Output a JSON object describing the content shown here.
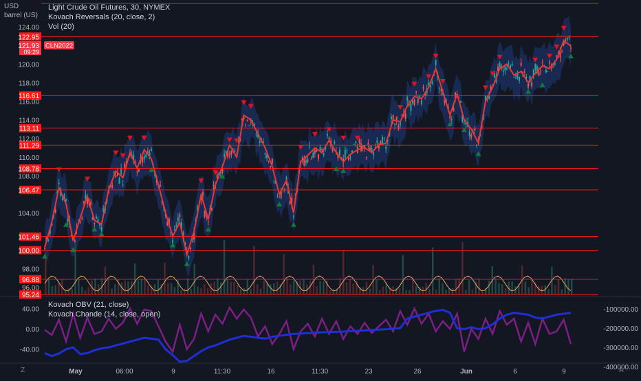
{
  "header": {
    "currency": "USD",
    "unit": "barrel (US)",
    "symbol_line": "Light Crude Oil Futures, 30, NYMEX",
    "indicator_1": "Kovach Reversals (20, close, 2)",
    "indicator_2": "Vol (20)"
  },
  "oscillator_pane": {
    "indicator_1": "Kovach OBV (21, close)",
    "indicator_2": "Kovach Chande (14, close, open)"
  },
  "corner_buttons": {
    "left": "Z",
    "right": "A"
  },
  "price_badge": {
    "price": "121.93",
    "timer": "09:29",
    "ticker": "CLN2022"
  },
  "colors": {
    "background": "#131722",
    "level_line": "#ff1a1a",
    "price_badge": "#f23645",
    "ma_line": "#e53935",
    "band_fill": "#1e3a78",
    "buy_marker": "#0e7c36",
    "sell_marker": "#e0141e",
    "obv_line": "#1f2fd6",
    "chande_line": "#7b1f85",
    "volume_avg": "#f2a463"
  },
  "chart_data": [
    {
      "type": "line",
      "title": "Light Crude Oil Futures, 30, NYMEX",
      "ylim": [
        95.24,
        125.0
      ],
      "y_ticks": [
        "96.00",
        "98.00",
        "100.00",
        "102.00",
        "104.00",
        "106.00",
        "108.00",
        "110.00",
        "112.00",
        "114.00",
        "116.00",
        "118.00",
        "120.00",
        "122.00",
        "124.00"
      ],
      "x_ticks": [
        "May",
        "06:00",
        "9",
        "11:30",
        "16",
        "11:30",
        "23",
        "26",
        "Jun",
        "6",
        "9"
      ],
      "horizontal_levels": [
        "122.95",
        "116.61",
        "113.11",
        "111.29",
        "108.78",
        "106.47",
        "101.46",
        "100.00",
        "96.88",
        "95.24"
      ],
      "price_path": [
        {
          "t": 0,
          "v": 100.3
        },
        {
          "t": 1,
          "v": 103.0
        },
        {
          "t": 2,
          "v": 106.7
        },
        {
          "t": 3,
          "v": 105.0
        },
        {
          "t": 4,
          "v": 101.0
        },
        {
          "t": 5,
          "v": 103.5
        },
        {
          "t": 6,
          "v": 105.8
        },
        {
          "t": 7,
          "v": 103.2
        },
        {
          "t": 8,
          "v": 102.8
        },
        {
          "t": 9,
          "v": 106.5
        },
        {
          "t": 10,
          "v": 108.5
        },
        {
          "t": 11,
          "v": 107.8
        },
        {
          "t": 12,
          "v": 110.5
        },
        {
          "t": 13,
          "v": 108.8
        },
        {
          "t": 14,
          "v": 110.8
        },
        {
          "t": 15,
          "v": 109.8
        },
        {
          "t": 16,
          "v": 107.0
        },
        {
          "t": 17,
          "v": 104.0
        },
        {
          "t": 18,
          "v": 101.5
        },
        {
          "t": 19,
          "v": 103.0
        },
        {
          "t": 20,
          "v": 99.5
        },
        {
          "t": 21,
          "v": 102.0
        },
        {
          "t": 22,
          "v": 106.0
        },
        {
          "t": 23,
          "v": 103.3
        },
        {
          "t": 24,
          "v": 107.0
        },
        {
          "t": 25,
          "v": 109.0
        },
        {
          "t": 26,
          "v": 111.3
        },
        {
          "t": 27,
          "v": 110.0
        },
        {
          "t": 28,
          "v": 114.5
        },
        {
          "t": 29,
          "v": 114.0
        },
        {
          "t": 30,
          "v": 112.5
        },
        {
          "t": 31,
          "v": 111.0
        },
        {
          "t": 32,
          "v": 109.0
        },
        {
          "t": 33,
          "v": 106.0
        },
        {
          "t": 34,
          "v": 107.5
        },
        {
          "t": 35,
          "v": 104.0
        },
        {
          "t": 36,
          "v": 109.5
        },
        {
          "t": 37,
          "v": 110.2
        },
        {
          "t": 38,
          "v": 111.0
        },
        {
          "t": 39,
          "v": 110.5
        },
        {
          "t": 40,
          "v": 111.8
        },
        {
          "t": 41,
          "v": 110.5
        },
        {
          "t": 42,
          "v": 109.5
        },
        {
          "t": 43,
          "v": 110.3
        },
        {
          "t": 44,
          "v": 110.8
        },
        {
          "t": 45,
          "v": 111.0
        },
        {
          "t": 46,
          "v": 110.5
        },
        {
          "t": 47,
          "v": 111.3
        },
        {
          "t": 48,
          "v": 111.5
        },
        {
          "t": 49,
          "v": 114.0
        },
        {
          "t": 50,
          "v": 113.8
        },
        {
          "t": 51,
          "v": 115.5
        },
        {
          "t": 52,
          "v": 116.5
        },
        {
          "t": 53,
          "v": 116.3
        },
        {
          "t": 54,
          "v": 117.5
        },
        {
          "t": 55,
          "v": 119.5
        },
        {
          "t": 56,
          "v": 117.0
        },
        {
          "t": 57,
          "v": 114.5
        },
        {
          "t": 58,
          "v": 116.8
        },
        {
          "t": 59,
          "v": 114.0
        },
        {
          "t": 60,
          "v": 113.0
        },
        {
          "t": 61,
          "v": 111.5
        },
        {
          "t": 62,
          "v": 116.0
        },
        {
          "t": 63,
          "v": 117.5
        },
        {
          "t": 64,
          "v": 119.5
        },
        {
          "t": 65,
          "v": 120.0
        },
        {
          "t": 66,
          "v": 118.8
        },
        {
          "t": 67,
          "v": 119.2
        },
        {
          "t": 68,
          "v": 118.0
        },
        {
          "t": 69,
          "v": 119.0
        },
        {
          "t": 70,
          "v": 119.8
        },
        {
          "t": 71,
          "v": 119.5
        },
        {
          "t": 72,
          "v": 120.5
        },
        {
          "t": 73,
          "v": 122.5
        },
        {
          "t": 74,
          "v": 121.93
        }
      ],
      "sell_markers": [
        {
          "t": 2,
          "v": 108.6
        },
        {
          "t": 6,
          "v": 107.6
        },
        {
          "t": 10,
          "v": 110.4
        },
        {
          "t": 11,
          "v": 110.1
        },
        {
          "t": 12,
          "v": 112.0
        },
        {
          "t": 14,
          "v": 112.0
        },
        {
          "t": 22,
          "v": 107.4
        },
        {
          "t": 24,
          "v": 108.3
        },
        {
          "t": 26,
          "v": 111.8
        },
        {
          "t": 27,
          "v": 111.7
        },
        {
          "t": 28,
          "v": 115.8
        },
        {
          "t": 29,
          "v": 115.4
        },
        {
          "t": 36,
          "v": 111.0
        },
        {
          "t": 38,
          "v": 112.4
        },
        {
          "t": 40,
          "v": 112.9
        },
        {
          "t": 42,
          "v": 112.0
        },
        {
          "t": 44,
          "v": 112.0
        },
        {
          "t": 50,
          "v": 115.3
        },
        {
          "t": 52,
          "v": 117.8
        },
        {
          "t": 54,
          "v": 118.6
        },
        {
          "t": 55,
          "v": 120.8
        },
        {
          "t": 56,
          "v": 118.1
        },
        {
          "t": 62,
          "v": 117.4
        },
        {
          "t": 63,
          "v": 118.9
        },
        {
          "t": 64,
          "v": 120.7
        },
        {
          "t": 69,
          "v": 120.4
        },
        {
          "t": 71,
          "v": 120.8
        },
        {
          "t": 72,
          "v": 121.8
        },
        {
          "t": 73,
          "v": 123.8
        }
      ],
      "buy_markers": [
        {
          "t": 0,
          "v": 99.4
        },
        {
          "t": 3,
          "v": 102.8
        },
        {
          "t": 4,
          "v": 100.1
        },
        {
          "t": 7,
          "v": 102.3
        },
        {
          "t": 8,
          "v": 101.8
        },
        {
          "t": 15,
          "v": 108.7
        },
        {
          "t": 18,
          "v": 100.6
        },
        {
          "t": 20,
          "v": 98.6
        },
        {
          "t": 23,
          "v": 102.3
        },
        {
          "t": 25,
          "v": 108.0
        },
        {
          "t": 33,
          "v": 105.0
        },
        {
          "t": 35,
          "v": 102.8
        },
        {
          "t": 41,
          "v": 108.8
        },
        {
          "t": 42,
          "v": 108.6
        },
        {
          "t": 57,
          "v": 113.6
        },
        {
          "t": 59,
          "v": 113.0
        },
        {
          "t": 61,
          "v": 110.4
        },
        {
          "t": 68,
          "v": 117.1
        },
        {
          "t": 70,
          "v": 117.8
        },
        {
          "t": 74,
          "v": 120.9
        }
      ]
    },
    {
      "type": "line",
      "title": "Kovach OBV (21, close)",
      "ylim": [
        -55,
        55
      ],
      "y_ticks": [
        "40.00",
        "0.00",
        "-40.00"
      ],
      "right_ticks": [
        "-100000.00",
        "-200000.00",
        "-300000.00",
        "-400000.00"
      ],
      "series": [
        {
          "name": "Kovach Chande (14, close, open)",
          "values": [
            -2,
            -12,
            18,
            -25,
            30,
            -18,
            22,
            -10,
            -5,
            20,
            0,
            12,
            40,
            10,
            38,
            35,
            5,
            -25,
            -45,
            8,
            -40,
            -20,
            30,
            -5,
            28,
            10,
            42,
            20,
            38,
            22,
            -15,
            5,
            -30,
            -10,
            15,
            -40,
            -5,
            10,
            -15,
            20,
            -10,
            15,
            -20,
            5,
            -10,
            12,
            -8,
            5,
            18,
            -5,
            35,
            8,
            40,
            10,
            30,
            -5,
            15,
            0,
            30,
            -45,
            0,
            -20,
            20,
            -10,
            35,
            8,
            20,
            -25,
            12,
            -30,
            20,
            -10,
            -5,
            18,
            -30
          ]
        },
        {
          "name": "Kovach OBV (21, close)",
          "values": [
            -330000,
            -345000,
            -332000,
            -310000,
            -300000,
            -335000,
            -330000,
            -315000,
            -305000,
            -300000,
            -290000,
            -280000,
            -270000,
            -260000,
            -250000,
            -255000,
            -260000,
            -310000,
            -340000,
            -375000,
            -370000,
            -345000,
            -320000,
            -300000,
            -290000,
            -275000,
            -260000,
            -250000,
            -240000,
            -245000,
            -250000,
            -255000,
            -245000,
            -240000,
            -235000,
            -230000,
            -228000,
            -226000,
            -224000,
            -222000,
            -220000,
            -219000,
            -218000,
            -216000,
            -214000,
            -212000,
            -210000,
            -208000,
            -206000,
            -202000,
            -200000,
            -150000,
            -140000,
            -130000,
            -120000,
            -110000,
            -105000,
            -120000,
            -200000,
            -205000,
            -195000,
            -205000,
            -200000,
            -180000,
            -150000,
            -130000,
            -120000,
            -125000,
            -130000,
            -145000,
            -150000,
            -140000,
            -130000,
            -125000,
            -120000
          ]
        }
      ]
    }
  ]
}
